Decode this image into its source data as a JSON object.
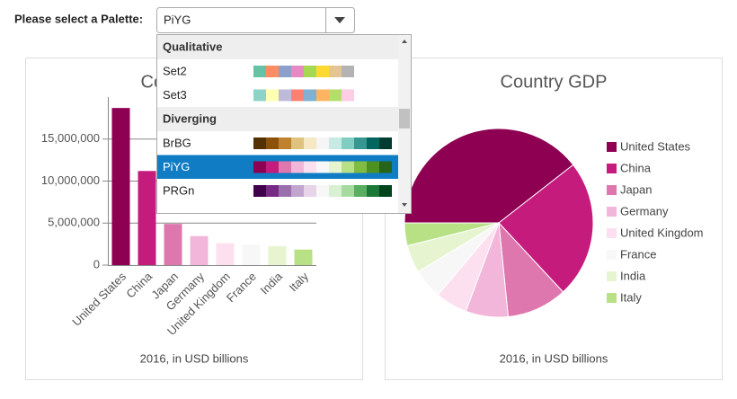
{
  "palette_selector": {
    "label": "Please select a Palette:",
    "value": "PiYG",
    "groups": [
      {
        "name": "Qualitative",
        "palettes": [
          {
            "name": "Set2",
            "colors": [
              "#66c2a5",
              "#fc8d62",
              "#8da0cb",
              "#e78ac3",
              "#a6d854",
              "#ffd92f",
              "#e5c494",
              "#b3b3b3"
            ]
          },
          {
            "name": "Set3",
            "colors": [
              "#8dd3c7",
              "#ffffb3",
              "#bebada",
              "#fb8072",
              "#80b1d3",
              "#fdb462",
              "#b3de69",
              "#fccde5"
            ]
          }
        ]
      },
      {
        "name": "Diverging",
        "palettes": [
          {
            "name": "BrBG",
            "colors": [
              "#543005",
              "#8c510a",
              "#bf812d",
              "#dfc27d",
              "#f6e8c3",
              "#f5f5f5",
              "#c7eae5",
              "#80cdc1",
              "#35978f",
              "#01665e",
              "#003c30"
            ]
          },
          {
            "name": "PiYG",
            "colors": [
              "#8e0152",
              "#c51b7d",
              "#de77ae",
              "#f1b6da",
              "#fde0ef",
              "#f7f7f7",
              "#e6f5d0",
              "#b8e186",
              "#7fbc41",
              "#4d9221",
              "#276419"
            ]
          },
          {
            "name": "PRGn",
            "colors": [
              "#40004b",
              "#762a83",
              "#9970ab",
              "#c2a5cf",
              "#e7d4e8",
              "#f7f7f7",
              "#d9f0d3",
              "#a6dba0",
              "#5aae61",
              "#1b7837",
              "#00441b"
            ]
          }
        ]
      }
    ]
  },
  "chart_data": [
    {
      "type": "bar",
      "title": "Country GDP",
      "caption": "2016, in USD billions",
      "categories": [
        "United States",
        "China",
        "Japan",
        "Germany",
        "United Kingdom",
        "France",
        "India",
        "Italy"
      ],
      "values": [
        18700000,
        11200000,
        4900000,
        3450000,
        2600000,
        2450000,
        2250000,
        1850000
      ],
      "colors": [
        "#8e0152",
        "#c51b7d",
        "#de77ae",
        "#f1b6da",
        "#fde0ef",
        "#f7f7f7",
        "#e6f5d0",
        "#b8e186"
      ],
      "ylim": [
        0,
        20000000
      ],
      "yticks": [
        0,
        {
          "value": 5000000,
          "label": "5,000,000"
        },
        {
          "value": 10000000,
          "label": "10,000,000"
        },
        {
          "value": 15000000,
          "label": "15,000,000"
        }
      ],
      "grid": true
    },
    {
      "type": "pie",
      "title": "Country GDP",
      "caption": "2016, in USD billions",
      "categories": [
        "United States",
        "China",
        "Japan",
        "Germany",
        "United Kingdom",
        "France",
        "India",
        "Italy"
      ],
      "values": [
        18700000,
        11200000,
        4900000,
        3450000,
        2600000,
        2450000,
        2250000,
        1850000
      ],
      "colors": [
        "#8e0152",
        "#c51b7d",
        "#de77ae",
        "#f1b6da",
        "#fde0ef",
        "#f7f7f7",
        "#e6f5d0",
        "#b8e186"
      ],
      "legend": "right"
    }
  ]
}
